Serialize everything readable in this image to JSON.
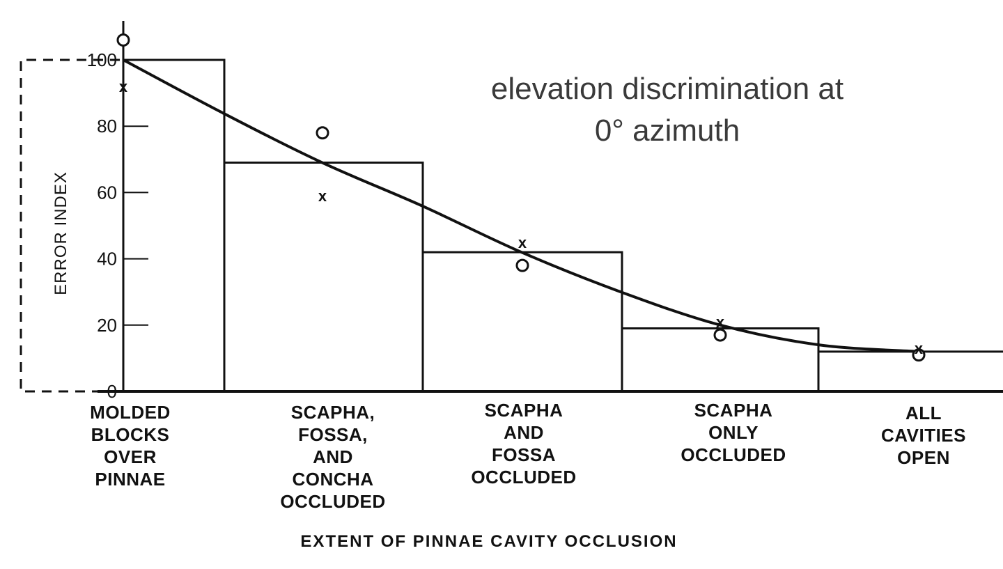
{
  "chart_data": {
    "type": "bar",
    "annotation_lines": [
      "elevation discrimination at",
      "0° azimuth"
    ],
    "xlabel": "EXTENT OF PINNAE CAVITY OCCLUSION",
    "ylabel": "ERROR INDEX",
    "ylim": [
      0,
      100
    ],
    "yticks": [
      0,
      20,
      40,
      60,
      80,
      100
    ],
    "categories": [
      [
        "MOLDED",
        "BLOCKS",
        "OVER",
        "PINNAE"
      ],
      [
        "SCAPHA,",
        "FOSSA,",
        "AND",
        "CONCHA",
        "OCCLUDED"
      ],
      [
        "SCAPHA",
        "AND",
        "FOSSA",
        "OCCLUDED"
      ],
      [
        "SCAPHA",
        "ONLY",
        "OCCLUDED"
      ],
      [
        "ALL",
        "CAVITIES",
        "OPEN"
      ]
    ],
    "bar_values": [
      100,
      69,
      42,
      19,
      12
    ],
    "o_points": [
      106,
      78,
      38,
      17,
      11
    ],
    "x_points": [
      92,
      59,
      45,
      21,
      13
    ],
    "curve": [
      100,
      84,
      69,
      56,
      42,
      30,
      20,
      14,
      12
    ],
    "grid": false,
    "legend": "none"
  }
}
